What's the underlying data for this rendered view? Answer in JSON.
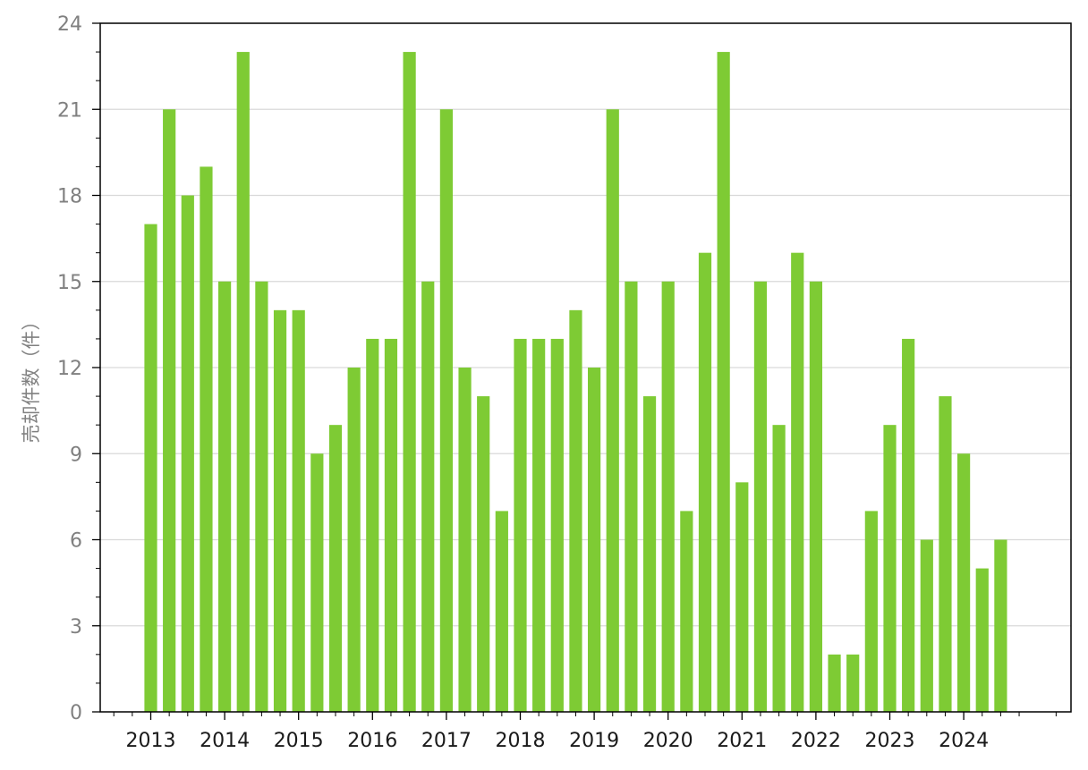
{
  "chart_data": {
    "type": "bar",
    "title": "",
    "xlabel": "",
    "ylabel": "売却件数（件）",
    "ylim": [
      0,
      24
    ],
    "yticks": [
      0,
      3,
      6,
      9,
      12,
      15,
      18,
      21,
      24
    ],
    "year_ticks": [
      "2013",
      "2014",
      "2015",
      "2016",
      "2017",
      "2018",
      "2019",
      "2020",
      "2021",
      "2022",
      "2023",
      "2024"
    ],
    "grid": "horizontal",
    "bar_color": "#7ecb34",
    "series": [
      {
        "x": [
          "2013-Q1",
          "2013-Q2",
          "2013-Q3",
          "2013-Q4",
          "2014-Q1",
          "2014-Q2",
          "2014-Q3",
          "2014-Q4",
          "2015-Q1",
          "2015-Q2",
          "2015-Q3",
          "2015-Q4",
          "2016-Q1",
          "2016-Q2",
          "2016-Q3",
          "2016-Q4",
          "2017-Q1",
          "2017-Q2",
          "2017-Q3",
          "2017-Q4",
          "2018-Q1",
          "2018-Q2",
          "2018-Q3",
          "2018-Q4",
          "2019-Q1",
          "2019-Q2",
          "2019-Q3",
          "2019-Q4",
          "2020-Q1",
          "2020-Q2",
          "2020-Q3",
          "2020-Q4",
          "2021-Q1",
          "2021-Q2",
          "2021-Q3",
          "2021-Q4",
          "2022-Q1",
          "2022-Q2",
          "2022-Q3",
          "2022-Q4",
          "2023-Q1",
          "2023-Q2",
          "2023-Q3",
          "2023-Q4",
          "2024-Q1",
          "2024-Q2",
          "2024-Q3"
        ],
        "values": [
          17,
          21,
          18,
          19,
          15,
          23,
          15,
          14,
          14,
          9,
          10,
          12,
          13,
          13,
          23,
          15,
          21,
          12,
          11,
          7,
          13,
          13,
          13,
          14,
          12,
          21,
          15,
          11,
          15,
          7,
          16,
          23,
          8,
          15,
          10,
          16,
          15,
          2,
          2,
          7,
          10,
          13,
          6,
          11,
          9,
          5,
          6
        ]
      }
    ]
  }
}
